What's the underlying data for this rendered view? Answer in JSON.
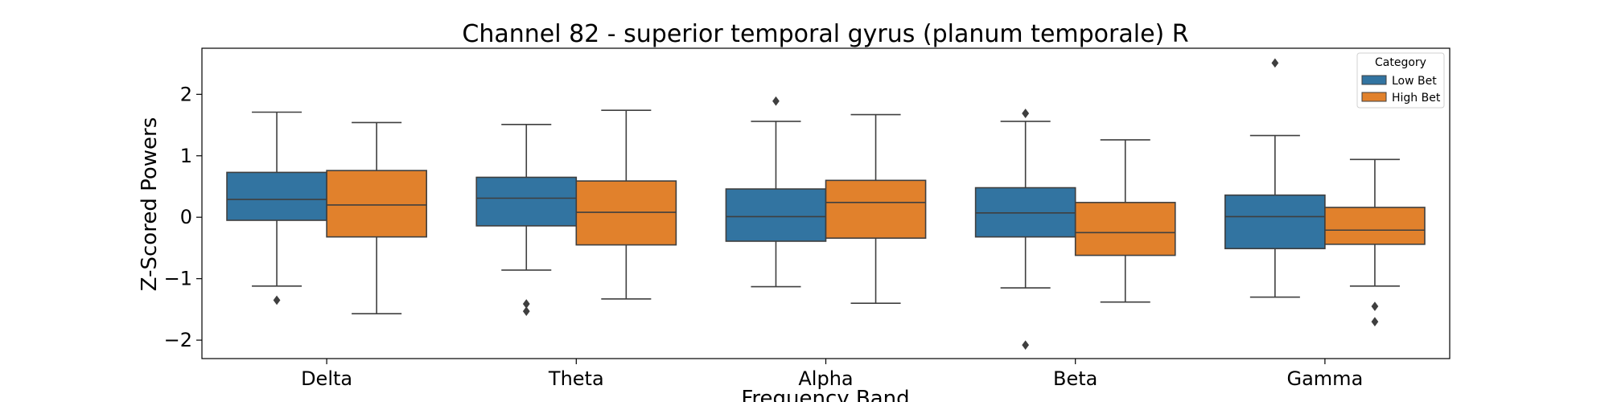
{
  "chart_data": {
    "type": "boxplot",
    "title": "Channel 82 - superior temporal gyrus (planum temporale) R",
    "xlabel": "Frequency Band",
    "ylabel": "Z-Scored Powers",
    "ylim": [
      -2.3,
      2.75
    ],
    "yticks": [
      -2,
      -1,
      0,
      1,
      2
    ],
    "ytick_labels": [
      "−2",
      "−1",
      "0",
      "1",
      "2"
    ],
    "categories": [
      "Delta",
      "Theta",
      "Alpha",
      "Beta",
      "Gamma"
    ],
    "grid": false,
    "legend": {
      "title": "Category",
      "position": "top-right"
    },
    "series": [
      {
        "name": "Low Bet",
        "color": "#3274a1",
        "boxes": [
          {
            "whislo": -1.12,
            "q1": -0.05,
            "med": 0.29,
            "q3": 0.73,
            "whishi": 1.71,
            "fliers": [
              -1.35
            ]
          },
          {
            "whislo": -0.86,
            "q1": -0.14,
            "med": 0.31,
            "q3": 0.65,
            "whishi": 1.51,
            "fliers": [
              -1.41,
              -1.53
            ]
          },
          {
            "whislo": -1.13,
            "q1": -0.39,
            "med": 0.01,
            "q3": 0.46,
            "whishi": 1.56,
            "fliers": [
              1.89
            ]
          },
          {
            "whislo": -1.15,
            "q1": -0.32,
            "med": 0.07,
            "q3": 0.48,
            "whishi": 1.56,
            "fliers": [
              1.69,
              1.69,
              -2.08
            ]
          },
          {
            "whislo": -1.3,
            "q1": -0.51,
            "med": 0.01,
            "q3": 0.36,
            "whishi": 1.33,
            "fliers": [
              2.51
            ]
          }
        ]
      },
      {
        "name": "High Bet",
        "color": "#e1812c",
        "boxes": [
          {
            "whislo": -1.57,
            "q1": -0.32,
            "med": 0.2,
            "q3": 0.76,
            "whishi": 1.54,
            "fliers": []
          },
          {
            "whislo": -1.33,
            "q1": -0.45,
            "med": 0.08,
            "q3": 0.59,
            "whishi": 1.74,
            "fliers": []
          },
          {
            "whislo": -1.4,
            "q1": -0.34,
            "med": 0.24,
            "q3": 0.6,
            "whishi": 1.67,
            "fliers": []
          },
          {
            "whislo": -1.38,
            "q1": -0.62,
            "med": -0.25,
            "q3": 0.24,
            "whishi": 1.26,
            "fliers": []
          },
          {
            "whislo": -1.12,
            "q1": -0.44,
            "med": -0.21,
            "q3": 0.16,
            "whishi": 0.94,
            "fliers": [
              -1.45,
              -1.7
            ]
          }
        ]
      }
    ]
  }
}
